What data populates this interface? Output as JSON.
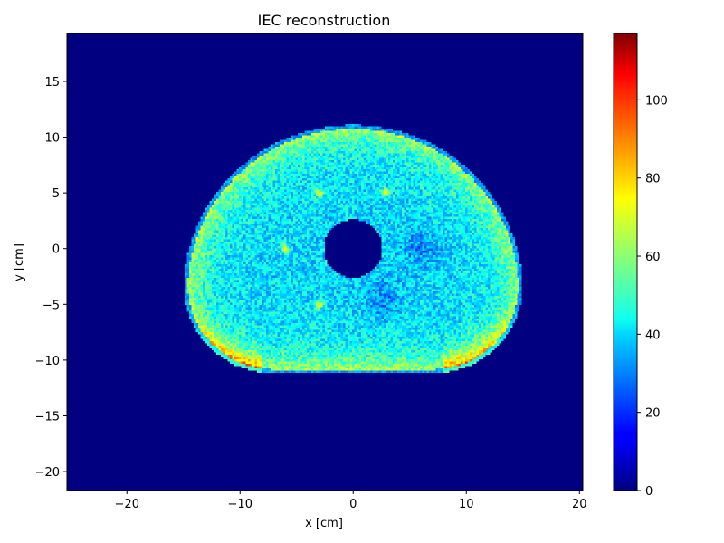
{
  "chart_data": {
    "type": "heatmap",
    "title": "IEC reconstruction",
    "xlabel": "x [cm]",
    "ylabel": "y [cm]",
    "xlim": [
      -25.3,
      20.3
    ],
    "ylim": [
      -21.7,
      19.3
    ],
    "xticks": [
      -20,
      -10,
      0,
      10,
      20
    ],
    "yticks": [
      -20,
      -15,
      -10,
      -5,
      0,
      5,
      10,
      15
    ],
    "xtick_labels": [
      "−20",
      "−10",
      "0",
      "10",
      "20"
    ],
    "ytick_labels": [
      "−20",
      "−15",
      "−10",
      "−5",
      "0",
      "5",
      "10",
      "15"
    ],
    "colormap": "jet",
    "colorbar": {
      "vmin": 0,
      "vmax": 117,
      "ticks": [
        0,
        20,
        40,
        60,
        80,
        100
      ],
      "tick_labels": [
        "0",
        "20",
        "40",
        "60",
        "80",
        "100"
      ]
    },
    "background_value": 0,
    "phantom": {
      "shape": "upper half-disk joined to a lower rounded rectangle",
      "center": [
        0,
        -3.9
      ],
      "radius": 15.0,
      "bottom_y": -11.2,
      "bottom_corner_radius": 8,
      "insert_center": [
        0,
        0
      ],
      "insert_radius": 2.6,
      "interior_value_approx": 40,
      "edge_value_approx": 60,
      "edge_hot_value_approx": 100,
      "hot_spots": [
        {
          "x": -3,
          "y": 5
        },
        {
          "x": 2.8,
          "y": 5
        },
        {
          "x": -6,
          "y": 0
        },
        {
          "x": -3,
          "y": -5
        }
      ],
      "cold_regions": [
        {
          "x": 6,
          "y": 0
        },
        {
          "x": 2.5,
          "y": -4.5
        }
      ]
    },
    "grid": false,
    "legend": "none"
  }
}
